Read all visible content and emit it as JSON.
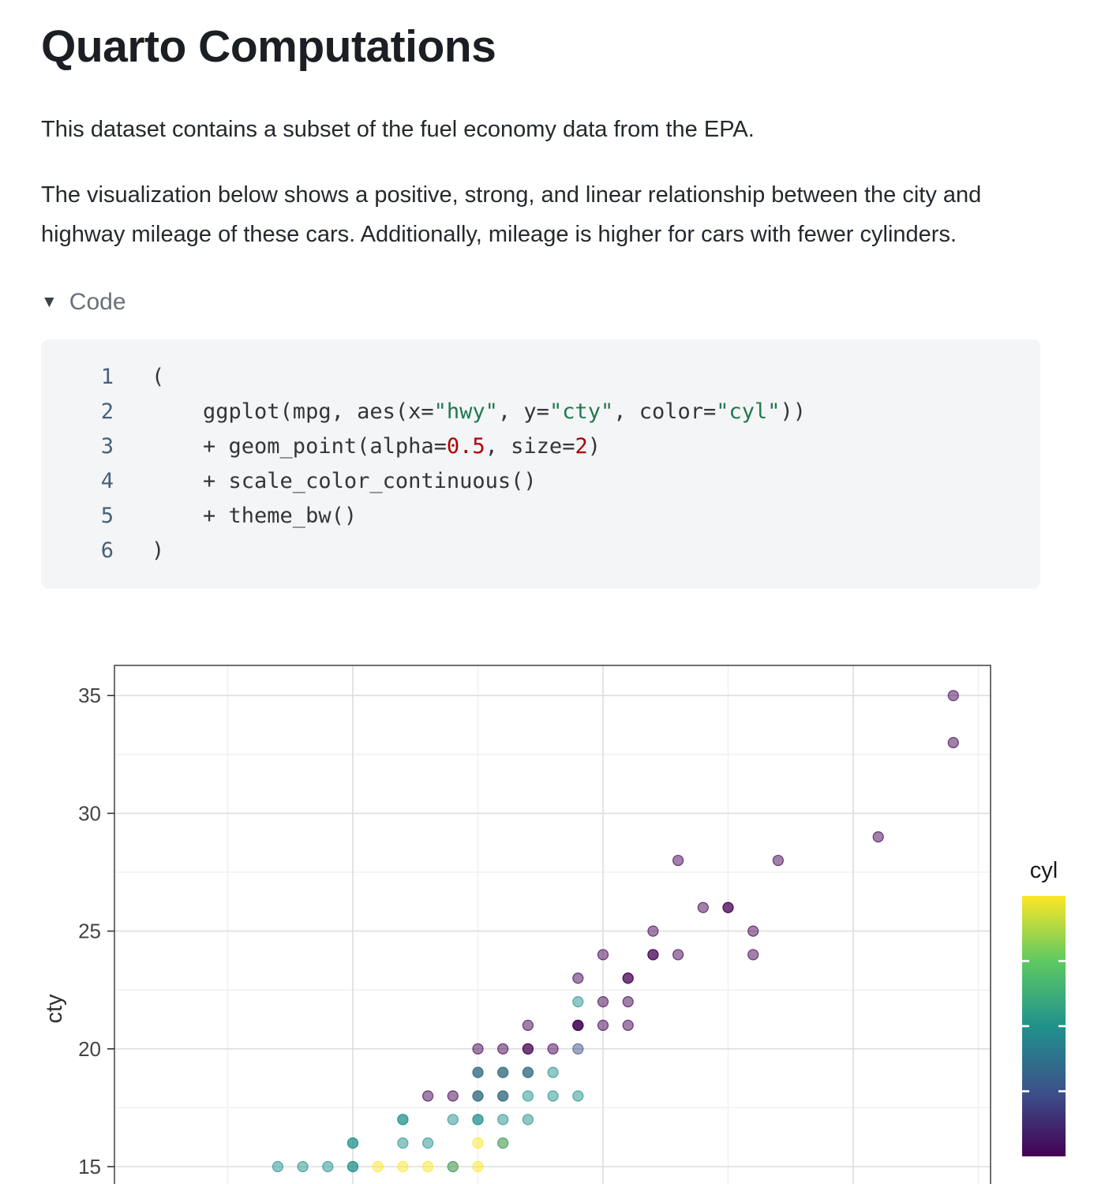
{
  "page": {
    "title": "Quarto Computations",
    "para1": "This dataset contains a subset of the fuel economy data from the EPA.",
    "para2": "The visualization below shows a positive, strong, and linear relationship between the city and highway mileage of these cars. Additionally, mileage is higher for cars with fewer cylinders.",
    "code_toggle_label": "Code",
    "code_toggle_icon": "▼"
  },
  "code_block": {
    "lines": [
      {
        "num": "1",
        "segments": [
          {
            "t": "(",
            "c": "plain"
          }
        ]
      },
      {
        "num": "2",
        "segments": [
          {
            "t": "    ggplot(mpg, aes(x=",
            "c": "plain"
          },
          {
            "t": "\"hwy\"",
            "c": "string"
          },
          {
            "t": ", y=",
            "c": "plain"
          },
          {
            "t": "\"cty\"",
            "c": "string"
          },
          {
            "t": ", color=",
            "c": "plain"
          },
          {
            "t": "\"cyl\"",
            "c": "string"
          },
          {
            "t": "))",
            "c": "plain"
          }
        ]
      },
      {
        "num": "3",
        "segments": [
          {
            "t": "    + geom_point(alpha=",
            "c": "plain"
          },
          {
            "t": "0.5",
            "c": "number"
          },
          {
            "t": ", size=",
            "c": "plain"
          },
          {
            "t": "2",
            "c": "number"
          },
          {
            "t": ")",
            "c": "plain"
          }
        ]
      },
      {
        "num": "4",
        "segments": [
          {
            "t": "    + scale_color_continuous()",
            "c": "plain"
          }
        ]
      },
      {
        "num": "5",
        "segments": [
          {
            "t": "    + theme_bw()",
            "c": "plain"
          }
        ]
      },
      {
        "num": "6",
        "segments": [
          {
            "t": ")",
            "c": "plain"
          }
        ]
      }
    ]
  },
  "chart_data": {
    "type": "scatter",
    "title": "",
    "ylabel": "cty",
    "x_field": "hwy",
    "color_field": "cyl",
    "alpha": 0.5,
    "y_ticks": [
      15,
      20,
      25,
      30,
      35
    ],
    "y_ticks_minor": [
      17.5,
      22.5,
      27.5,
      32.5
    ],
    "x_ticks_major": [
      20,
      30,
      40
    ],
    "x_ticks_minor": [
      15,
      25,
      35,
      45
    ],
    "xlim": [
      10.5,
      45.5
    ],
    "ylim_visible": [
      14.5,
      36.3
    ],
    "legend": {
      "title": "cyl",
      "min": 4,
      "max": 8,
      "breaks": [
        5,
        6,
        7
      ],
      "colors": {
        "4": "#440154",
        "5": "#3b528b",
        "6": "#21918c",
        "7": "#5ec962",
        "8": "#fde725"
      }
    },
    "points": [
      [
        44,
        35,
        4
      ],
      [
        44,
        33,
        4
      ],
      [
        41,
        29,
        4
      ],
      [
        33,
        28,
        4
      ],
      [
        37,
        28,
        4
      ],
      [
        34,
        26,
        4
      ],
      [
        35,
        26,
        4
      ],
      [
        35,
        26,
        4
      ],
      [
        32,
        25,
        4
      ],
      [
        36,
        25,
        4
      ],
      [
        30,
        24,
        4
      ],
      [
        32,
        24,
        4
      ],
      [
        32,
        24,
        4
      ],
      [
        33,
        24,
        4
      ],
      [
        36,
        24,
        4
      ],
      [
        29,
        23,
        4
      ],
      [
        31,
        23,
        4
      ],
      [
        31,
        23,
        4
      ],
      [
        29,
        22,
        6
      ],
      [
        30,
        22,
        4
      ],
      [
        31,
        22,
        4
      ],
      [
        27,
        21,
        4
      ],
      [
        29,
        21,
        4
      ],
      [
        29,
        21,
        4
      ],
      [
        29,
        21,
        4
      ],
      [
        30,
        21,
        4
      ],
      [
        31,
        21,
        4
      ],
      [
        25,
        20,
        4
      ],
      [
        26,
        20,
        4
      ],
      [
        27,
        20,
        4
      ],
      [
        27,
        20,
        4
      ],
      [
        28,
        20,
        4
      ],
      [
        29,
        20,
        5
      ],
      [
        25,
        19,
        4
      ],
      [
        25,
        19,
        6
      ],
      [
        26,
        19,
        4
      ],
      [
        26,
        19,
        6
      ],
      [
        27,
        19,
        4
      ],
      [
        27,
        19,
        6
      ],
      [
        28,
        19,
        6
      ],
      [
        23,
        18,
        4
      ],
      [
        24,
        18,
        4
      ],
      [
        25,
        18,
        4
      ],
      [
        25,
        18,
        6
      ],
      [
        26,
        18,
        4
      ],
      [
        26,
        18,
        6
      ],
      [
        27,
        18,
        6
      ],
      [
        28,
        18,
        6
      ],
      [
        29,
        18,
        6
      ],
      [
        22,
        17,
        6
      ],
      [
        22,
        17,
        6
      ],
      [
        24,
        17,
        6
      ],
      [
        25,
        17,
        6
      ],
      [
        25,
        17,
        6
      ],
      [
        26,
        17,
        6
      ],
      [
        27,
        17,
        6
      ],
      [
        20,
        16,
        6
      ],
      [
        20,
        16,
        6
      ],
      [
        22,
        16,
        6
      ],
      [
        23,
        16,
        6
      ],
      [
        25,
        16,
        8
      ],
      [
        26,
        16,
        8
      ],
      [
        26,
        16,
        6
      ],
      [
        17,
        15,
        6
      ],
      [
        18,
        15,
        6
      ],
      [
        19,
        15,
        6
      ],
      [
        20,
        15,
        6
      ],
      [
        20,
        15,
        6
      ],
      [
        21,
        15,
        8
      ],
      [
        22,
        15,
        8
      ],
      [
        23,
        15,
        8
      ],
      [
        24,
        15,
        8
      ],
      [
        24,
        15,
        6
      ],
      [
        25,
        15,
        8
      ]
    ]
  }
}
